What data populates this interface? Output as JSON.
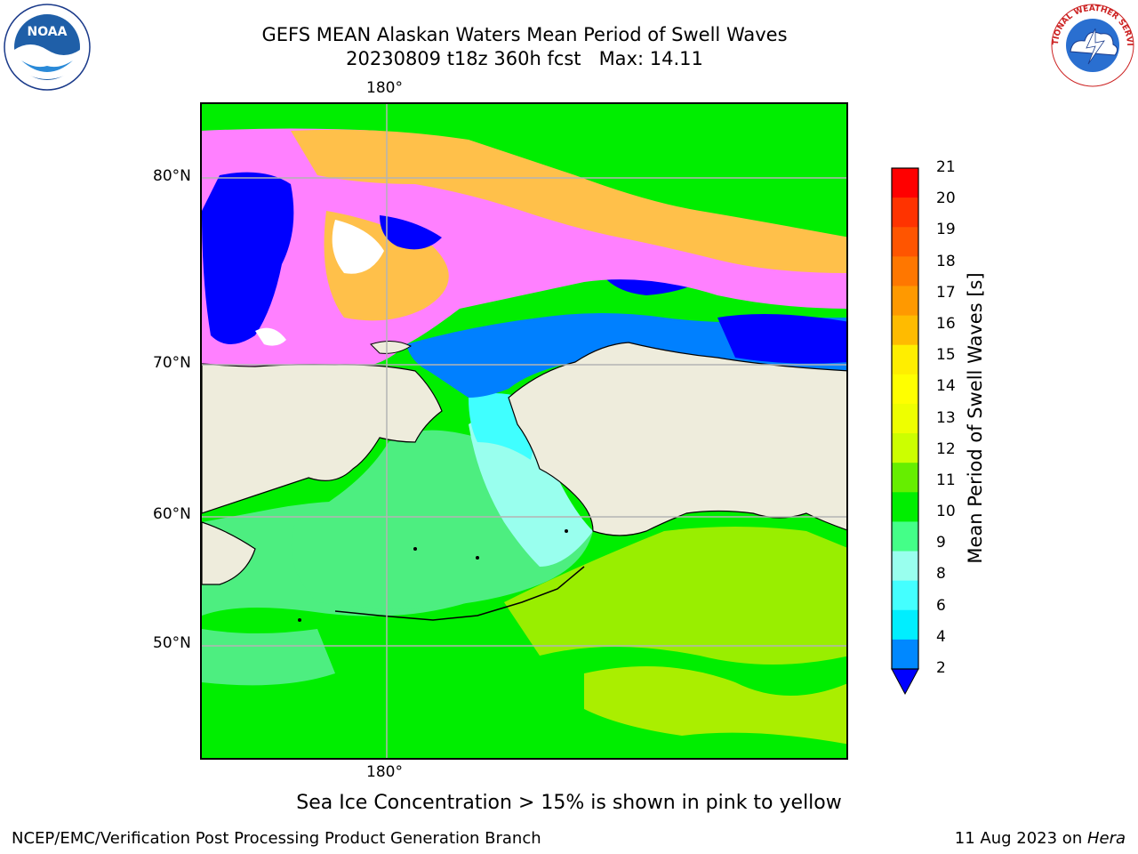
{
  "title": {
    "line1": "GEFS MEAN Alaskan Waters Mean Period of Swell Waves",
    "line2": "20230809 t18z 360h fcst   Max: 14.11"
  },
  "logos": {
    "left": "NOAA",
    "left_ring_text": "NATIONAL OCEANIC AND ATMOSPHERIC ADMINISTRATION · U.S. DEPARTMENT OF COMMERCE",
    "right_ring_text": "NATIONAL WEATHER SERVICE"
  },
  "map": {
    "lon_label_top": "180°",
    "lon_label_bottom": "180°",
    "lat_labels": [
      "80°N",
      "70°N",
      "60°N",
      "50°N"
    ],
    "colors": {
      "land": "#eeecdc",
      "ice_pink": "#ff80ff",
      "ice_orange": "#ffc04a",
      "ice_blue": "#0000ff",
      "swell_2_4": "#0080ff",
      "swell_6_8": "#40ffff",
      "swell_10_11": "#00ee00",
      "swell_12_13": "#99ee00",
      "swell_9_10": "#4dee80"
    }
  },
  "colorbar": {
    "title": "Mean Period of Swell Waves [s]",
    "ticks": [
      "21",
      "20",
      "19",
      "18",
      "17",
      "16",
      "15",
      "14",
      "13",
      "12",
      "11",
      "10",
      "9",
      "8",
      "6",
      "4",
      "2"
    ],
    "colors": [
      "#ff0000",
      "#ff3300",
      "#ff5500",
      "#ff7700",
      "#ff9900",
      "#ffbb00",
      "#ffee00",
      "#ffff00",
      "#eeff00",
      "#ccff00",
      "#66ee00",
      "#00ee00",
      "#44ff88",
      "#99ffee",
      "#44ffff",
      "#00eeff",
      "#0088ff"
    ],
    "extend_color": "#0000ff"
  },
  "subnote": "Sea Ice Concentration > 15% is shown in pink to yellow",
  "footer": {
    "left": "NCEP/EMC/Verification Post Processing Product Generation Branch",
    "right_date": "11 Aug 2023 on ",
    "right_host": "Hera"
  }
}
